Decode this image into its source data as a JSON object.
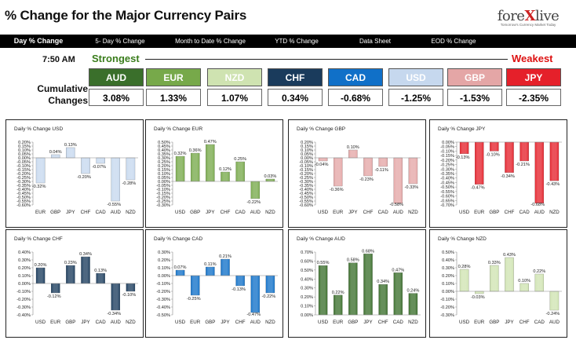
{
  "header": {
    "title": "% Change for the Major Currency Pairs",
    "logo_word_a": "fore",
    "logo_word_x": "X",
    "logo_word_b": "live",
    "logo_tagline": "Tomorrow's Currency Market Today"
  },
  "tabs": [
    {
      "label": "Day % Change",
      "active": true
    },
    {
      "label": "5- Day % Change",
      "active": false
    },
    {
      "label": "Month to Date % Change",
      "active": false
    },
    {
      "label": "YTD % Change",
      "active": false
    },
    {
      "label": "Data Sheet",
      "active": false
    },
    {
      "label": "EOD % Change",
      "active": false
    }
  ],
  "summary": {
    "time": "7:50 AM",
    "strongest_label": "Strongest",
    "weakest_label": "Weakest",
    "cumulative_label_1": "Cumulative",
    "cumulative_label_2": "Changes",
    "currencies": [
      {
        "code": "AUD",
        "value": "3.08%",
        "color": "#3a6f2b"
      },
      {
        "code": "EUR",
        "value": "1.33%",
        "color": "#77a94a"
      },
      {
        "code": "NZD",
        "value": "1.07%",
        "color": "#cfe3b1"
      },
      {
        "code": "CHF",
        "value": "0.34%",
        "color": "#1a3b5c"
      },
      {
        "code": "CAD",
        "value": "-0.68%",
        "color": "#1070c8"
      },
      {
        "code": "USD",
        "value": "-1.25%",
        "color": "#c6d8ee"
      },
      {
        "code": "GBP",
        "value": "-1.53%",
        "color": "#e4a6a6"
      },
      {
        "code": "JPY",
        "value": "-2.35%",
        "color": "#e5202a"
      }
    ]
  },
  "chart_data": [
    {
      "type": "bar",
      "title": "Daily % Change USD",
      "categories": [
        "EUR",
        "GBP",
        "JPY",
        "CHF",
        "CAD",
        "AUD",
        "NZD"
      ],
      "values": [
        -0.32,
        0.04,
        0.13,
        -0.2,
        -0.07,
        -0.55,
        -0.28
      ],
      "labels": [
        "-0.32%",
        "0.04%",
        "0.13%",
        "-0.20%",
        "-0.07%",
        "-0.55%",
        "-0.28%"
      ],
      "ylim": [
        -0.6,
        0.2
      ],
      "yticks": [
        0.2,
        0.15,
        0.1,
        0.05,
        0.0,
        -0.05,
        -0.1,
        -0.15,
        -0.2,
        -0.25,
        -0.3,
        -0.35,
        -0.4,
        -0.45,
        -0.5,
        -0.55,
        -0.6
      ],
      "ytick_labels": [
        "0.20%",
        "0.15%",
        "0.10%",
        "0.05%",
        "0.00%",
        "-0.05%",
        "-0.10%",
        "-0.15%",
        "-0.20%",
        "-0.25%",
        "-0.30%",
        "-0.35%",
        "-0.40%",
        "-0.45%",
        "-0.50%",
        "-0.55%",
        "-0.60%"
      ],
      "color": "#c6d8ee"
    },
    {
      "type": "bar",
      "title": "Daily % Change EUR",
      "categories": [
        "USD",
        "GBP",
        "JPY",
        "CHF",
        "CAD",
        "AUD",
        "NZD"
      ],
      "values": [
        0.32,
        0.36,
        0.47,
        0.12,
        0.25,
        -0.22,
        0.03
      ],
      "labels": [
        "0.32%",
        "0.36%",
        "0.47%",
        "0.12%",
        "0.25%",
        "-0.22%",
        "0.03%"
      ],
      "ylim": [
        -0.3,
        0.5
      ],
      "yticks": [
        0.5,
        0.45,
        0.4,
        0.35,
        0.3,
        0.25,
        0.2,
        0.15,
        0.1,
        0.05,
        0.0,
        -0.05,
        -0.1,
        -0.15,
        -0.2,
        -0.25,
        -0.3
      ],
      "ytick_labels": [
        "0.50%",
        "0.45%",
        "0.40%",
        "0.35%",
        "0.30%",
        "0.25%",
        "0.20%",
        "0.15%",
        "0.10%",
        "0.05%",
        "0.00%",
        "-0.05%",
        "-0.10%",
        "-0.15%",
        "-0.20%",
        "-0.25%",
        "-0.30%"
      ],
      "color": "#77a94a"
    },
    {
      "type": "bar",
      "title": "Daily % Change GBP",
      "categories": [
        "USD",
        "EUR",
        "JPY",
        "CHF",
        "CAD",
        "AUD",
        "NZD"
      ],
      "values": [
        -0.04,
        -0.36,
        0.1,
        -0.23,
        -0.11,
        -0.58,
        -0.33
      ],
      "labels": [
        "-0.04%",
        "-0.36%",
        "0.10%",
        "-0.23%",
        "-0.11%",
        "-0.58%",
        "-0.33%"
      ],
      "ylim": [
        -0.6,
        0.2
      ],
      "yticks": [
        0.2,
        0.15,
        0.1,
        0.05,
        0.0,
        -0.05,
        -0.1,
        -0.15,
        -0.2,
        -0.25,
        -0.3,
        -0.35,
        -0.4,
        -0.45,
        -0.5,
        -0.55,
        -0.6
      ],
      "ytick_labels": [
        "0.20%",
        "0.15%",
        "0.10%",
        "0.05%",
        "0.00%",
        "-0.05%",
        "-0.10%",
        "-0.15%",
        "-0.20%",
        "-0.25%",
        "-0.30%",
        "-0.35%",
        "-0.40%",
        "-0.45%",
        "-0.50%",
        "-0.55%",
        "-0.60%"
      ],
      "color": "#e4a6a6"
    },
    {
      "type": "bar",
      "title": "Daily % Change JPY",
      "categories": [
        "USD",
        "EUR",
        "GBP",
        "CHF",
        "CAD",
        "AUD",
        "NZD"
      ],
      "values": [
        -0.13,
        -0.47,
        -0.1,
        -0.34,
        -0.21,
        -0.68,
        -0.43
      ],
      "labels": [
        "-0.13%",
        "-0.47%",
        "-0.10%",
        "-0.34%",
        "-0.21%",
        "-0.68%",
        "-0.43%"
      ],
      "ylim": [
        -0.7,
        0.0
      ],
      "yticks": [
        0.0,
        -0.05,
        -0.1,
        -0.15,
        -0.2,
        -0.25,
        -0.3,
        -0.35,
        -0.4,
        -0.45,
        -0.5,
        -0.55,
        -0.6,
        -0.65,
        -0.7
      ],
      "ytick_labels": [
        "0.00%",
        "-0.05%",
        "-0.10%",
        "-0.15%",
        "-0.20%",
        "-0.25%",
        "-0.30%",
        "-0.35%",
        "-0.40%",
        "-0.45%",
        "-0.50%",
        "-0.55%",
        "-0.60%",
        "-0.65%",
        "-0.70%"
      ],
      "color": "#e5202a"
    },
    {
      "type": "bar",
      "title": "Daily % Change CHF",
      "categories": [
        "USD",
        "EUR",
        "GBP",
        "JPY",
        "CAD",
        "AUD",
        "NZD"
      ],
      "values": [
        0.2,
        -0.12,
        0.23,
        0.34,
        0.13,
        -0.34,
        -0.1
      ],
      "labels": [
        "0.20%",
        "-0.12%",
        "0.23%",
        "0.34%",
        "0.13%",
        "-0.34%",
        "-0.10%"
      ],
      "ylim": [
        -0.4,
        0.4
      ],
      "yticks": [
        0.4,
        0.3,
        0.2,
        0.1,
        0.0,
        -0.1,
        -0.2,
        -0.3,
        -0.4
      ],
      "ytick_labels": [
        "0.40%",
        "0.30%",
        "0.20%",
        "0.10%",
        "0.00%",
        "-0.10%",
        "-0.20%",
        "-0.30%",
        "-0.40%"
      ],
      "color": "#1a3b5c"
    },
    {
      "type": "bar",
      "title": "Daily % Change CAD",
      "categories": [
        "USD",
        "EUR",
        "GBP",
        "JPY",
        "CHF",
        "AUD",
        "NZD"
      ],
      "values": [
        0.07,
        -0.25,
        0.11,
        0.21,
        -0.13,
        -0.47,
        -0.22
      ],
      "labels": [
        "0.07%",
        "-0.25%",
        "0.11%",
        "0.21%",
        "-0.13%",
        "-0.47%",
        "-0.22%"
      ],
      "ylim": [
        -0.5,
        0.3
      ],
      "yticks": [
        0.3,
        0.2,
        0.1,
        0.0,
        -0.1,
        -0.2,
        -0.3,
        -0.4,
        -0.5
      ],
      "ytick_labels": [
        "0.30%",
        "0.20%",
        "0.10%",
        "0.00%",
        "-0.10%",
        "-0.20%",
        "-0.30%",
        "-0.40%",
        "-0.50%"
      ],
      "color": "#1070c8"
    },
    {
      "type": "bar",
      "title": "Daily % Change AUD",
      "categories": [
        "USD",
        "EUR",
        "GBP",
        "JPY",
        "CHF",
        "CAD",
        "NZD"
      ],
      "values": [
        0.55,
        0.22,
        0.58,
        0.68,
        0.34,
        0.47,
        0.24
      ],
      "labels": [
        "0.55%",
        "0.22%",
        "0.58%",
        "0.68%",
        "0.34%",
        "0.47%",
        "0.24%"
      ],
      "ylim": [
        0.0,
        0.7
      ],
      "yticks": [
        0.7,
        0.6,
        0.5,
        0.4,
        0.3,
        0.2,
        0.1,
        0.0
      ],
      "ytick_labels": [
        "0.70%",
        "0.60%",
        "0.50%",
        "0.40%",
        "0.30%",
        "0.20%",
        "0.10%",
        "0.00%"
      ],
      "color": "#3a6f2b"
    },
    {
      "type": "bar",
      "title": "Daily % Change NZD",
      "categories": [
        "USD",
        "EUR",
        "GBP",
        "JPY",
        "CHF",
        "CAD",
        "AUD"
      ],
      "values": [
        0.28,
        -0.03,
        0.33,
        0.43,
        0.1,
        0.22,
        -0.24
      ],
      "labels": [
        "0.28%",
        "-0.03%",
        "0.33%",
        "0.43%",
        "0.10%",
        "0.22%",
        "-0.24%"
      ],
      "ylim": [
        -0.3,
        0.5
      ],
      "yticks": [
        0.5,
        0.4,
        0.3,
        0.2,
        0.1,
        0.0,
        -0.1,
        -0.2,
        -0.3
      ],
      "ytick_labels": [
        "0.50%",
        "0.40%",
        "0.30%",
        "0.20%",
        "0.10%",
        "0.00%",
        "-0.10%",
        "-0.20%",
        "-0.30%"
      ],
      "color": "#cfe3b1"
    }
  ]
}
